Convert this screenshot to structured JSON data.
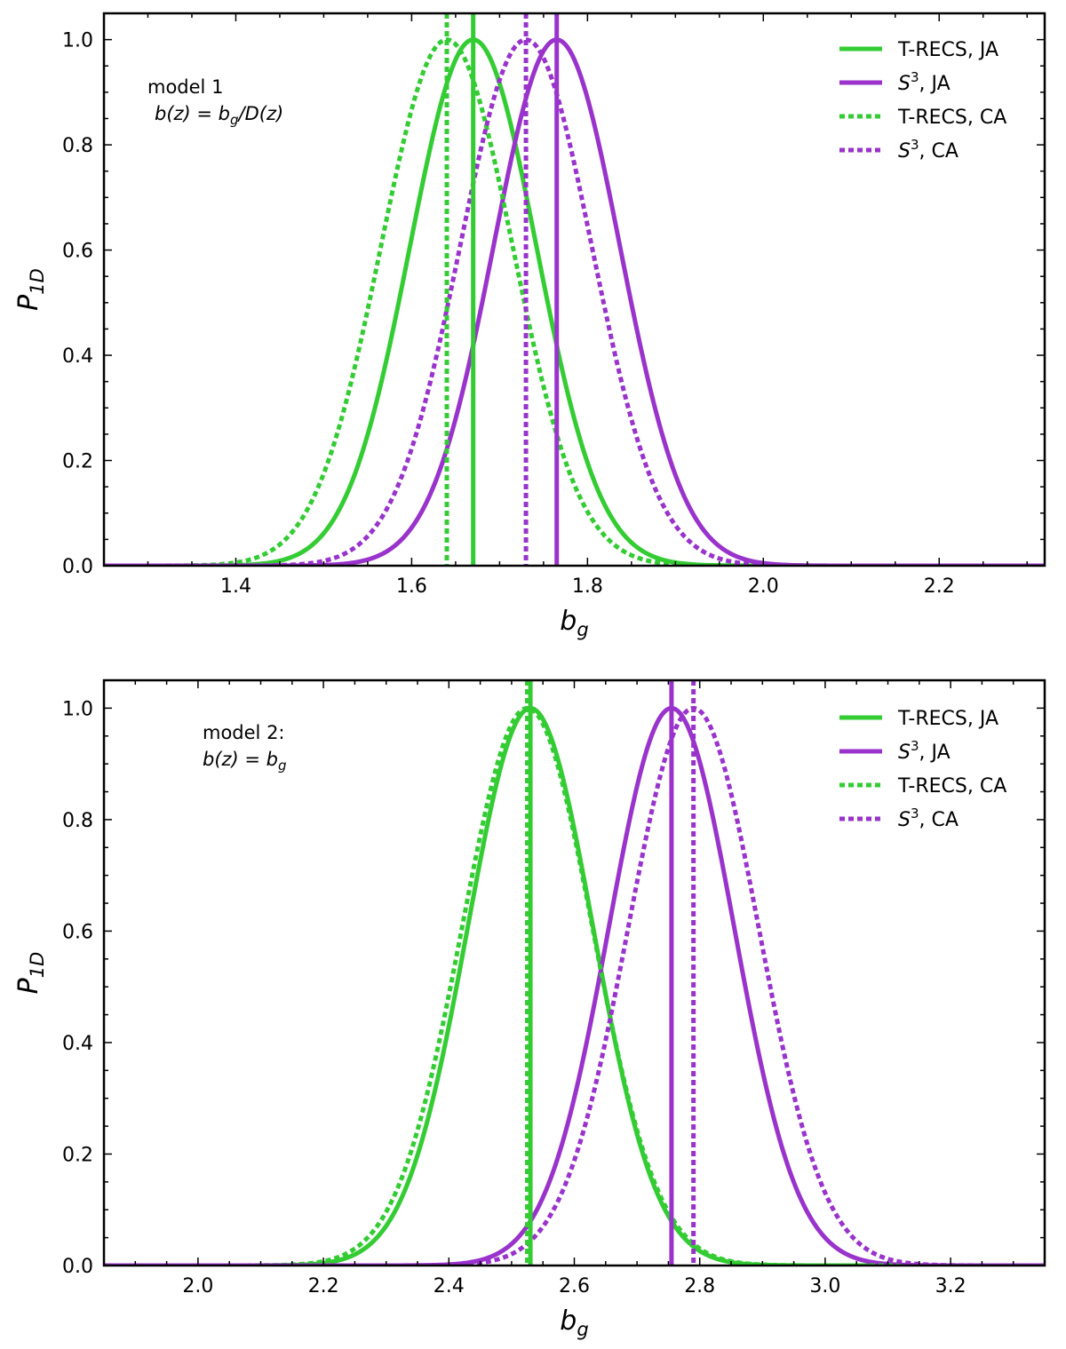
{
  "colors": {
    "green": "#33cc33",
    "purple": "#9933cc"
  },
  "chart_data": [
    {
      "type": "line",
      "title": "",
      "xlabel": "b_g",
      "ylabel": "P_1D",
      "xlim": [
        1.25,
        2.32
      ],
      "ylim": [
        0.0,
        1.05
      ],
      "xticks": [
        1.4,
        1.6,
        1.8,
        2.0,
        2.2
      ],
      "xtick_labels": [
        "1.4",
        "1.6",
        "1.8",
        "2.0",
        "2.2"
      ],
      "yticks": [
        0.0,
        0.2,
        0.4,
        0.6,
        0.8,
        1.0
      ],
      "ytick_labels": [
        "0.0",
        "0.2",
        "0.4",
        "0.6",
        "0.8",
        "1.0"
      ],
      "grid": false,
      "legend_position": "top-right",
      "annotation": {
        "line1": "model 1",
        "line2_prefix": "b(z) = b",
        "line2_sub": "g",
        "line2_suffix": "/D(z)"
      },
      "series": [
        {
          "name": "T-RECS, JA",
          "legend_base": "T-RECS, JA",
          "legend_sup": "",
          "legend_rest": "",
          "color": "green",
          "style": "solid",
          "peak": 1.67,
          "sigma": 0.072,
          "vline": 1.67
        },
        {
          "name": "S^3, JA",
          "legend_base": "S",
          "legend_sup": "3",
          "legend_rest": ", JA",
          "color": "purple",
          "style": "solid",
          "peak": 1.765,
          "sigma": 0.072,
          "vline": 1.765
        },
        {
          "name": "T-RECS, CA",
          "legend_base": "T-RECS, CA",
          "legend_sup": "",
          "legend_rest": "",
          "color": "green",
          "style": "dotted",
          "peak": 1.64,
          "sigma": 0.075,
          "vline": 1.64
        },
        {
          "name": "S^3, CA",
          "legend_base": "S",
          "legend_sup": "3",
          "legend_rest": ", CA",
          "color": "purple",
          "style": "dotted",
          "peak": 1.73,
          "sigma": 0.075,
          "vline": 1.73
        }
      ]
    },
    {
      "type": "line",
      "title": "",
      "xlabel": "b_g",
      "ylabel": "P_1D",
      "xlim": [
        1.85,
        3.35
      ],
      "ylim": [
        0.0,
        1.05
      ],
      "xticks": [
        2.0,
        2.2,
        2.4,
        2.6,
        2.8,
        3.0,
        3.2
      ],
      "xtick_labels": [
        "2.0",
        "2.2",
        "2.4",
        "2.6",
        "2.8",
        "3.0",
        "3.2"
      ],
      "yticks": [
        0.0,
        0.2,
        0.4,
        0.6,
        0.8,
        1.0
      ],
      "ytick_labels": [
        "0.0",
        "0.2",
        "0.4",
        "0.6",
        "0.8",
        "1.0"
      ],
      "grid": false,
      "legend_position": "top-right",
      "annotation": {
        "line1": "model 2:",
        "line2_prefix": "b(z) = b",
        "line2_sub": "g",
        "line2_suffix": ""
      },
      "series": [
        {
          "name": "T-RECS, JA",
          "legend_base": "T-RECS, JA",
          "legend_sup": "",
          "legend_rest": "",
          "color": "green",
          "style": "solid",
          "peak": 2.53,
          "sigma": 0.1,
          "vline": 2.53
        },
        {
          "name": "S^3, JA",
          "legend_base": "S",
          "legend_sup": "3",
          "legend_rest": ", JA",
          "color": "purple",
          "style": "solid",
          "peak": 2.755,
          "sigma": 0.1,
          "vline": 2.755
        },
        {
          "name": "T-RECS, CA",
          "legend_base": "T-RECS, CA",
          "legend_sup": "",
          "legend_rest": "",
          "color": "green",
          "style": "dotted",
          "peak": 2.525,
          "sigma": 0.104,
          "vline": 2.525
        },
        {
          "name": "S^3, CA",
          "legend_base": "S",
          "legend_sup": "3",
          "legend_rest": ", CA",
          "color": "purple",
          "style": "dotted",
          "peak": 2.79,
          "sigma": 0.104,
          "vline": 2.79
        }
      ]
    }
  ]
}
